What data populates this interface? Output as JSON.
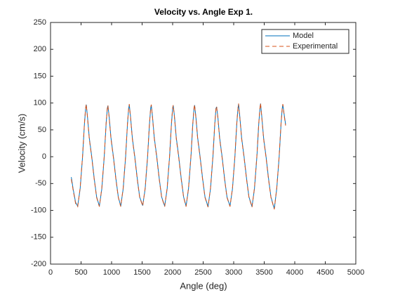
{
  "chart_data": {
    "type": "line",
    "title": "Velocity vs. Angle Exp 1.",
    "xlabel": "Angle (deg)",
    "ylabel": "Velocity (cm/s)",
    "xlim": [
      0,
      5000
    ],
    "xticks": [
      0,
      500,
      1000,
      1500,
      2000,
      2500,
      3000,
      3500,
      4000,
      4500,
      5000
    ],
    "ylim": [
      -200,
      250
    ],
    "yticks": [
      -200,
      -150,
      -100,
      -50,
      0,
      50,
      100,
      150,
      200,
      250
    ],
    "legend": "northeast",
    "x": [
      340,
      370,
      410,
      445,
      485,
      525,
      555,
      575,
      585,
      605,
      635,
      675,
      715,
      755,
      800,
      840,
      880,
      910,
      930,
      940,
      960,
      990,
      1030,
      1070,
      1110,
      1150,
      1190,
      1230,
      1260,
      1280,
      1290,
      1310,
      1340,
      1380,
      1420,
      1460,
      1510,
      1550,
      1590,
      1620,
      1640,
      1650,
      1670,
      1700,
      1740,
      1780,
      1820,
      1870,
      1910,
      1950,
      1980,
      2000,
      2010,
      2030,
      2060,
      2100,
      2140,
      2180,
      2220,
      2260,
      2300,
      2330,
      2350,
      2360,
      2380,
      2410,
      2450,
      2490,
      2530,
      2580,
      2620,
      2660,
      2690,
      2710,
      2720,
      2740,
      2770,
      2810,
      2850,
      2890,
      2940,
      2980,
      3020,
      3050,
      3070,
      3080,
      3100,
      3130,
      3170,
      3210,
      3250,
      3300,
      3340,
      3380,
      3410,
      3430,
      3440,
      3460,
      3490,
      3530,
      3570,
      3610,
      3665,
      3705,
      3745,
      3775,
      3795,
      3805,
      3825,
      3850
    ],
    "series": [
      {
        "name": "Model",
        "color": "#0072bd",
        "dashed": false,
        "values": [
          -38,
          -60,
          -85,
          -92,
          -60,
          0,
          60,
          90,
          97,
          75,
          35,
          0,
          -40,
          -75,
          -92,
          -60,
          0,
          60,
          90,
          95,
          75,
          35,
          0,
          -40,
          -75,
          -92,
          -60,
          0,
          60,
          90,
          97,
          75,
          35,
          0,
          -40,
          -75,
          -91,
          -60,
          0,
          60,
          90,
          96,
          75,
          35,
          0,
          -40,
          -75,
          -92,
          -60,
          0,
          60,
          90,
          95,
          75,
          35,
          0,
          -40,
          -75,
          -92,
          -60,
          0,
          60,
          90,
          96,
          75,
          35,
          0,
          -40,
          -75,
          -93,
          -60,
          0,
          60,
          90,
          93,
          75,
          35,
          0,
          -40,
          -75,
          -92,
          -60,
          0,
          60,
          90,
          98,
          75,
          35,
          0,
          -40,
          -75,
          -93,
          -60,
          0,
          60,
          90,
          99,
          75,
          35,
          0,
          -40,
          -75,
          -97,
          -60,
          0,
          60,
          90,
          97,
          80,
          60
        ]
      },
      {
        "name": "Experimental",
        "color": "#d95319",
        "dashed": true,
        "values": [
          -42,
          -62,
          -87,
          -93,
          -58,
          2,
          62,
          91,
          98,
          73,
          33,
          -2,
          -42,
          -76,
          -93,
          -58,
          2,
          62,
          91,
          96,
          73,
          33,
          -2,
          -42,
          -76,
          -93,
          -58,
          2,
          62,
          91,
          98,
          73,
          33,
          -2,
          -42,
          -76,
          -92,
          -58,
          2,
          62,
          91,
          97,
          73,
          33,
          -2,
          -42,
          -76,
          -93,
          -58,
          2,
          62,
          91,
          96,
          73,
          33,
          -2,
          -42,
          -76,
          -93,
          -58,
          2,
          62,
          91,
          97,
          73,
          33,
          -2,
          -42,
          -76,
          -94,
          -58,
          2,
          62,
          91,
          94,
          73,
          33,
          -2,
          -42,
          -76,
          -93,
          -58,
          2,
          62,
          91,
          99,
          73,
          33,
          -2,
          -42,
          -76,
          -94,
          -58,
          2,
          62,
          91,
          100,
          73,
          33,
          -2,
          -42,
          -76,
          -98,
          -58,
          2,
          62,
          92,
          98,
          78,
          58
        ]
      }
    ]
  }
}
